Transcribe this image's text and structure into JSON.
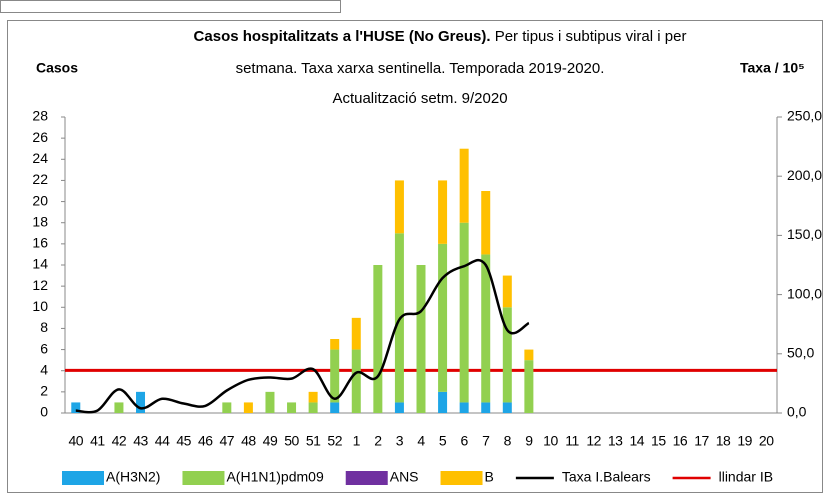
{
  "chart_data": {
    "type": "bar",
    "title": "Casos hospitalitzats a l'HUSE (No Greus).",
    "subtitle": [
      "Per tipus i subtipus viral i per",
      "setmana. Taxa xarxa sentinella. Temporada 2019-2020.",
      "Actualització setm. 9/2020"
    ],
    "ylabel": "Casos",
    "y2label": "Taxa / 10⁵",
    "categories": [
      "40",
      "41",
      "42",
      "43",
      "44",
      "45",
      "46",
      "47",
      "48",
      "49",
      "50",
      "51",
      "52",
      "1",
      "2",
      "3",
      "4",
      "5",
      "6",
      "7",
      "8",
      "9",
      "10",
      "11",
      "12",
      "13",
      "14",
      "15",
      "16",
      "17",
      "18",
      "19",
      "20"
    ],
    "series": [
      {
        "name": "A(H3N2)",
        "color": "#1ea5e6",
        "values": [
          1,
          0,
          0,
          2,
          0,
          0,
          0,
          0,
          0,
          0,
          0,
          0,
          1,
          0,
          0,
          1,
          0,
          2,
          1,
          1,
          1,
          0,
          0,
          0,
          0,
          0,
          0,
          0,
          0,
          0,
          0,
          0,
          0
        ]
      },
      {
        "name": "A(H1N1)pdm09",
        "color": "#92d050",
        "values": [
          0,
          0,
          1,
          0,
          0,
          0,
          0,
          1,
          0,
          2,
          1,
          1,
          5,
          6,
          14,
          16,
          14,
          14,
          17,
          14,
          9,
          5,
          0,
          0,
          0,
          0,
          0,
          0,
          0,
          0,
          0,
          0,
          0
        ]
      },
      {
        "name": "ANS",
        "color": "#7030a0",
        "values": [
          0,
          0,
          0,
          0,
          0,
          0,
          0,
          0,
          0,
          0,
          0,
          0,
          0,
          0,
          0,
          0,
          0,
          0,
          0,
          0,
          0,
          0,
          0,
          0,
          0,
          0,
          0,
          0,
          0,
          0,
          0,
          0,
          0
        ]
      },
      {
        "name": "B",
        "color": "#ffc000",
        "values": [
          0,
          0,
          0,
          0,
          0,
          0,
          0,
          0,
          1,
          0,
          0,
          1,
          1,
          3,
          0,
          5,
          0,
          6,
          7,
          6,
          3,
          1,
          0,
          0,
          0,
          0,
          0,
          0,
          0,
          0,
          0,
          0,
          0
        ]
      },
      {
        "name": "Taxa I.Balears",
        "color": "#000000",
        "type": "line",
        "axis": "y2",
        "values": [
          2,
          2,
          20,
          4,
          12,
          8,
          6,
          19,
          28,
          30,
          29,
          37,
          12,
          34,
          31,
          79,
          86,
          114,
          124,
          125,
          70,
          76,
          null,
          null,
          null,
          null,
          null,
          null,
          null,
          null,
          null,
          null,
          null
        ]
      }
    ],
    "threshold": {
      "name": "llindar IB",
      "color": "#e00000",
      "value": 36,
      "axis": "y2"
    },
    "ylim": [
      0,
      28
    ],
    "yticks": [
      0,
      2,
      4,
      6,
      8,
      10,
      12,
      14,
      16,
      18,
      20,
      22,
      24,
      26,
      28
    ],
    "y2lim": [
      0,
      250
    ],
    "y2ticks": [
      {
        "value": 0,
        "label": "0,0"
      },
      {
        "value": 50,
        "label": "50,0"
      },
      {
        "value": 100,
        "label": "100,0"
      },
      {
        "value": 150,
        "label": "150,0"
      },
      {
        "value": 200,
        "label": "200,0"
      },
      {
        "value": 250,
        "label": "250,0"
      }
    ]
  }
}
